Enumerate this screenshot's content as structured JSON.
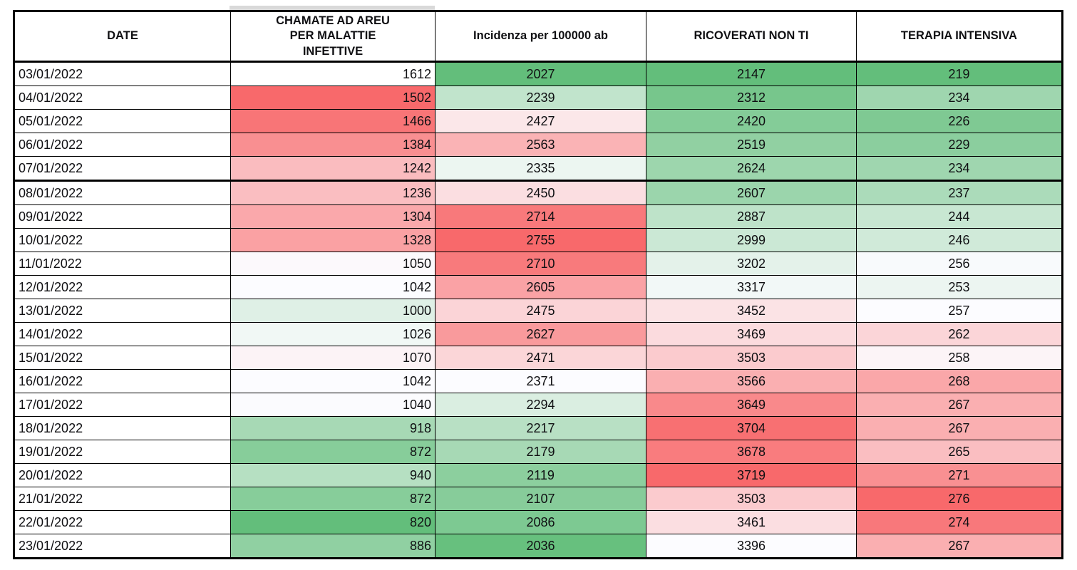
{
  "chart_data": {
    "type": "table",
    "title": "",
    "columns": [
      "DATE",
      "CHAMATE AD AREU PER MALATTIE INFETTIVE",
      "Incidenza per 100000 ab",
      "RICOVERATI NON TI",
      "TERAPIA INTENSIVA"
    ],
    "dates": [
      "03/01/2022",
      "04/01/2022",
      "05/01/2022",
      "06/01/2022",
      "07/01/2022",
      "08/01/2022",
      "09/01/2022",
      "10/01/2022",
      "11/01/2022",
      "12/01/2022",
      "13/01/2022",
      "14/01/2022",
      "15/01/2022",
      "16/01/2022",
      "17/01/2022",
      "18/01/2022",
      "19/01/2022",
      "20/01/2022",
      "21/01/2022",
      "22/01/2022",
      "23/01/2022"
    ],
    "series": [
      {
        "name": "CHAMATE AD AREU PER MALATTIE INFETTIVE",
        "values": [
          1612,
          1502,
          1466,
          1384,
          1242,
          1236,
          1304,
          1328,
          1050,
          1042,
          1000,
          1026,
          1070,
          1042,
          1040,
          918,
          872,
          940,
          872,
          820,
          886
        ]
      },
      {
        "name": "Incidenza per 100000 ab",
        "values": [
          2027,
          2239,
          2427,
          2563,
          2335,
          2450,
          2714,
          2755,
          2710,
          2605,
          2475,
          2627,
          2471,
          2371,
          2294,
          2217,
          2179,
          2119,
          2107,
          2086,
          2036
        ]
      },
      {
        "name": "RICOVERATI NON TI",
        "values": [
          2147,
          2312,
          2420,
          2519,
          2624,
          2607,
          2887,
          2999,
          3202,
          3317,
          3452,
          3469,
          3503,
          3566,
          3649,
          3704,
          3678,
          3719,
          3503,
          3461,
          3396
        ]
      },
      {
        "name": "TERAPIA INTENSIVA",
        "values": [
          219,
          234,
          226,
          229,
          234,
          237,
          244,
          246,
          256,
          253,
          257,
          262,
          258,
          268,
          267,
          267,
          265,
          271,
          276,
          274,
          267
        ]
      }
    ],
    "conditional_formatting": {
      "type": "3-color-scale-per-column",
      "low_color": "#63BE7B",
      "mid_color": "#FCFCFF",
      "high_color": "#F8696B",
      "midpoint": "50th-percentile",
      "unformatted_cells": [
        {
          "series_index": 0,
          "row_index": 0
        }
      ]
    },
    "thick_border_after_row_index": 4,
    "layout": {
      "grid": true,
      "legend": false
    }
  }
}
